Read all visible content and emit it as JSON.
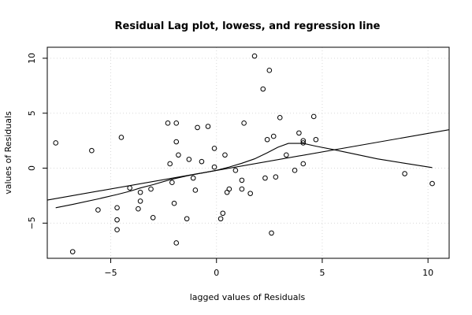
{
  "chart_data": {
    "type": "scatter",
    "title": "Residual Lag plot, lowess, and regression line",
    "xlabel": "lagged values of Residuals",
    "ylabel": "values of Residuals",
    "xlim": [
      -8,
      11
    ],
    "ylim": [
      -8.2,
      11
    ],
    "x_ticks": [
      -5,
      0,
      5,
      10
    ],
    "y_ticks": [
      -5,
      0,
      5,
      10
    ],
    "grid": true,
    "points": [
      {
        "x": -7.6,
        "y": 2.3
      },
      {
        "x": -6.8,
        "y": -7.6
      },
      {
        "x": -5.9,
        "y": 1.6
      },
      {
        "x": -5.6,
        "y": -3.8
      },
      {
        "x": -4.7,
        "y": -3.6
      },
      {
        "x": -4.7,
        "y": -4.7
      },
      {
        "x": -4.7,
        "y": -5.6
      },
      {
        "x": -4.5,
        "y": 2.8
      },
      {
        "x": -4.1,
        "y": -1.8
      },
      {
        "x": -3.7,
        "y": -3.7
      },
      {
        "x": -3.6,
        "y": -3.0
      },
      {
        "x": -3.6,
        "y": -2.2
      },
      {
        "x": -3.1,
        "y": -1.9
      },
      {
        "x": -3.0,
        "y": -4.5
      },
      {
        "x": -2.3,
        "y": 4.1
      },
      {
        "x": -2.2,
        "y": 0.4
      },
      {
        "x": -2.1,
        "y": -1.3
      },
      {
        "x": -2.0,
        "y": -3.2
      },
      {
        "x": -1.9,
        "y": 4.1
      },
      {
        "x": -1.9,
        "y": 2.4
      },
      {
        "x": -1.9,
        "y": -6.8
      },
      {
        "x": -1.8,
        "y": 1.2
      },
      {
        "x": -1.4,
        "y": -4.6
      },
      {
        "x": -1.3,
        "y": 0.8
      },
      {
        "x": -1.1,
        "y": -0.9
      },
      {
        "x": -1.0,
        "y": -2.0
      },
      {
        "x": -0.9,
        "y": 3.7
      },
      {
        "x": -0.7,
        "y": 0.6
      },
      {
        "x": -0.4,
        "y": 3.8
      },
      {
        "x": -0.1,
        "y": 0.1
      },
      {
        "x": -0.1,
        "y": 1.8
      },
      {
        "x": 0.2,
        "y": -4.6
      },
      {
        "x": 0.3,
        "y": -4.1
      },
      {
        "x": 0.4,
        "y": 1.2
      },
      {
        "x": 0.5,
        "y": -2.2
      },
      {
        "x": 0.6,
        "y": -1.9
      },
      {
        "x": 0.9,
        "y": -0.2
      },
      {
        "x": 1.2,
        "y": -1.1
      },
      {
        "x": 1.2,
        "y": -1.9
      },
      {
        "x": 1.3,
        "y": 4.1
      },
      {
        "x": 1.6,
        "y": -2.3
      },
      {
        "x": 1.8,
        "y": 10.2
      },
      {
        "x": 2.2,
        "y": 7.2
      },
      {
        "x": 2.3,
        "y": -0.9
      },
      {
        "x": 2.4,
        "y": 2.6
      },
      {
        "x": 2.5,
        "y": 8.9
      },
      {
        "x": 2.6,
        "y": -5.9
      },
      {
        "x": 2.7,
        "y": 2.9
      },
      {
        "x": 2.8,
        "y": -0.8
      },
      {
        "x": 3.0,
        "y": 4.6
      },
      {
        "x": 3.3,
        "y": 1.2
      },
      {
        "x": 3.7,
        "y": -0.2
      },
      {
        "x": 3.9,
        "y": 3.2
      },
      {
        "x": 4.1,
        "y": 0.4
      },
      {
        "x": 4.1,
        "y": 2.3
      },
      {
        "x": 4.1,
        "y": 2.5
      },
      {
        "x": 4.6,
        "y": 4.7
      },
      {
        "x": 4.7,
        "y": 2.6
      },
      {
        "x": 8.9,
        "y": -0.5
      },
      {
        "x": 10.2,
        "y": -1.4
      }
    ],
    "regression_line": {
      "x": [
        -8,
        11
      ],
      "y": [
        -2.9,
        3.5
      ]
    },
    "lowess": {
      "x": [
        -7.6,
        -6.8,
        -5.6,
        -4.7,
        -4.1,
        -3.6,
        -3.0,
        -2.2,
        -1.4,
        -0.7,
        0.0,
        0.6,
        1.2,
        1.8,
        2.4,
        2.9,
        3.4,
        4.1,
        4.7,
        5.5,
        6.5,
        7.6,
        8.9,
        10.2
      ],
      "y": [
        -3.6,
        -3.3,
        -2.8,
        -2.4,
        -2.1,
        -1.8,
        -1.5,
        -1.05,
        -0.7,
        -0.45,
        -0.2,
        0.1,
        0.45,
        0.85,
        1.4,
        1.9,
        2.25,
        2.25,
        2.0,
        1.7,
        1.3,
        0.85,
        0.45,
        0.05
      ]
    }
  }
}
